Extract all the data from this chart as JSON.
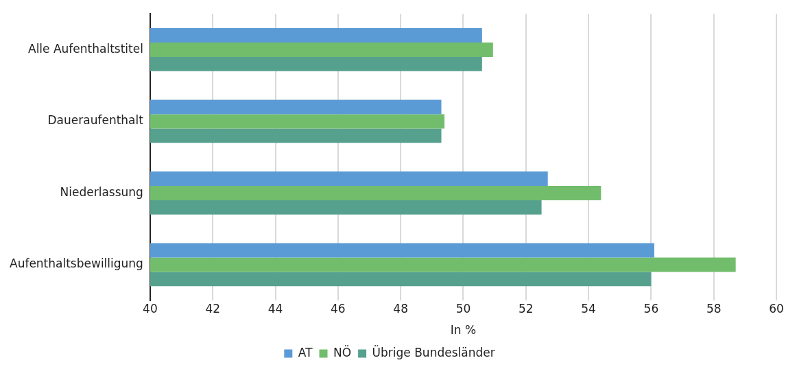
{
  "chart_data": {
    "type": "bar",
    "orientation": "horizontal",
    "xlabel": "In %",
    "categories": [
      "Alle Aufenthaltstitel",
      "Daueraufenthalt",
      "Niederlassung",
      "Aufenthaltsbewilligung"
    ],
    "series": [
      {
        "name": "AT",
        "color": "#5b9bd5",
        "values": [
          50.6,
          49.3,
          52.7,
          56.1
        ]
      },
      {
        "name": "NÖ",
        "color": "#72bd6c",
        "values": [
          50.95,
          49.4,
          54.4,
          58.7
        ]
      },
      {
        "name": "Übrige Bundesländer",
        "color": "#56a08e",
        "values": [
          50.6,
          49.3,
          52.5,
          56.0
        ]
      }
    ],
    "xlim": [
      40,
      60
    ],
    "xticks": [
      40,
      42,
      44,
      46,
      48,
      50,
      52,
      54,
      56,
      58,
      60
    ],
    "grid": "x",
    "legend": "bottom"
  }
}
